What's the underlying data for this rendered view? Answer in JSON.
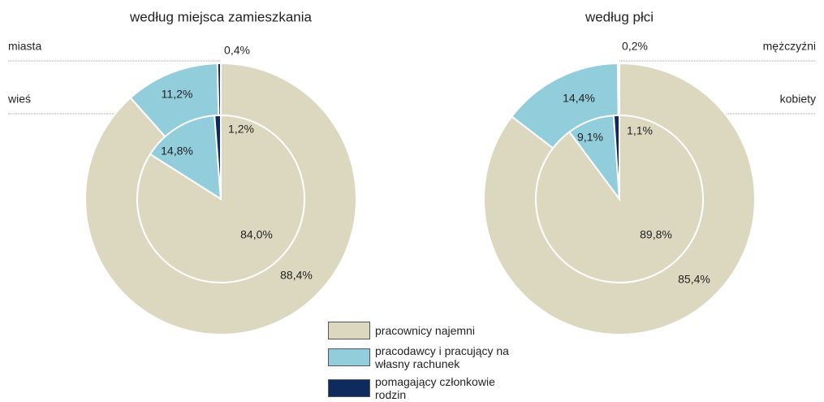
{
  "chart_data": {
    "type": "pie",
    "categories": [
      "pracownicy najemni",
      "pracodawcy i pracujący na własny rachunek",
      "pomagający członkowie rodzin"
    ],
    "colors": [
      "#dcd8c0",
      "#92cddc",
      "#0f2a5c"
    ],
    "legend": "bottom",
    "panels": [
      {
        "title": "według miejsca zamieszkania",
        "series": [
          {
            "name": "miasta",
            "values": [
              88.4,
              11.2,
              0.4
            ],
            "value_labels": [
              "88,4%",
              "11,2%",
              "0,4%"
            ]
          },
          {
            "name": "wieś",
            "values": [
              84.0,
              14.8,
              1.2
            ],
            "value_labels": [
              "84,0%",
              "14,8%",
              "1,2%"
            ]
          }
        ]
      },
      {
        "title": "według płci",
        "series": [
          {
            "name": "mężczyźni",
            "values": [
              85.4,
              14.4,
              0.2
            ],
            "value_labels": [
              "85,4%",
              "14,4%",
              "0,2%"
            ]
          },
          {
            "name": "kobiety",
            "values": [
              89.8,
              9.1,
              1.1
            ],
            "value_labels": [
              "89,8%",
              "9,1%",
              "1,1%"
            ]
          }
        ]
      }
    ]
  }
}
